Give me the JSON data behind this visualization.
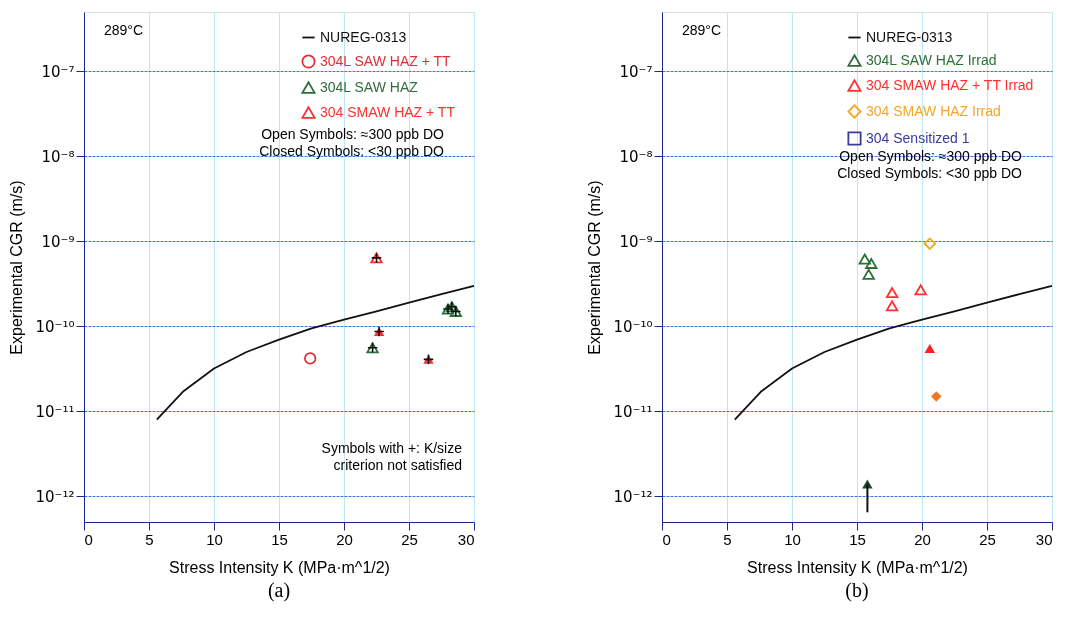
{
  "chart_data": [
    {
      "type": "scatter",
      "title": "(a)",
      "xlabel": "Stress Intensity K (MPa·m^1/2)",
      "ylabel": "Experimental CGR (m/s)",
      "xlim": [
        0,
        30
      ],
      "xticks": [
        0,
        5,
        10,
        15,
        20,
        25,
        30
      ],
      "ylim": [
        5e-13,
        5e-07
      ],
      "log": true,
      "yticks": [
        {
          "value": 1e-12,
          "label": "10⁻¹²"
        },
        {
          "value": 1e-11,
          "label": "10⁻¹¹"
        },
        {
          "value": 1e-10,
          "label": "10⁻¹⁰"
        },
        {
          "value": 1e-09,
          "label": "10⁻⁹"
        },
        {
          "value": 1e-08,
          "label": "10⁻⁸"
        },
        {
          "value": 1e-07,
          "label": "10⁻⁷"
        }
      ],
      "grid": true,
      "legend": "top right",
      "annotations": [
        "289°C",
        "Open  Symbols: ≈300 ppb  DO\nClosed Symbols: <30 ppb DO",
        "Symbols with +: K/size\ncriterion not satisfied"
      ],
      "series": [
        {
          "name": "NUREG-0313",
          "type": "line",
          "line_style": "solid",
          "color": "#111111",
          "x": [
            5.6,
            7.6,
            10,
            12.5,
            15,
            17.5,
            20,
            22.5,
            25,
            27.5,
            30
          ],
          "values": [
            8e-12,
            1.7e-11,
            3.2e-11,
            5e-11,
            7e-11,
            9.5e-11,
            1.2e-10,
            1.5e-10,
            1.9e-10,
            2.4e-10,
            3e-10
          ]
        },
        {
          "name": "304L SAW HAZ + TT",
          "marker": "circle",
          "color": "#e03038",
          "x": [
            17.4
          ],
          "values": [
            4.2e-11
          ]
        },
        {
          "name": "304L SAW HAZ",
          "marker": "triangle",
          "color": "#2e6e3a",
          "x": [
            22.2,
            28.0,
            28.3,
            28.6
          ],
          "values": [
            5.6e-11,
            1.6e-10,
            1.7e-10,
            1.5e-10
          ]
        },
        {
          "name": "304 SMAW HAZ + TT",
          "marker": "triangle",
          "color": "#ff3030",
          "x": [
            22.5
          ],
          "values": [
            6.4e-10
          ]
        },
        {
          "marker": "triangle",
          "color": "#ff3030",
          "x": [
            22.7,
            26.5
          ],
          "values": [
            8.7e-11,
            4.1e-11
          ]
        },
        {
          "marker": "cross",
          "color": "#111111",
          "x": [
            22.5,
            22.7,
            26.5,
            22.2,
            28.0,
            28.3,
            28.6
          ],
          "values": [
            6.4e-10,
            8.7e-11,
            4.1e-11,
            5.6e-11,
            1.6e-10,
            1.7e-10,
            1.5e-10
          ]
        }
      ]
    },
    {
      "type": "scatter",
      "title": "(b)",
      "xlabel": "Stress Intensity K (MPa·m^1/2)",
      "ylabel": "Experimental CGR (m/s)",
      "xlim": [
        0,
        30
      ],
      "xticks": [
        0,
        5,
        10,
        15,
        20,
        25,
        30
      ],
      "ylim": [
        5e-13,
        5e-07
      ],
      "log": true,
      "yticks": [
        {
          "value": 1e-12,
          "label": "10⁻¹²"
        },
        {
          "value": 1e-11,
          "label": "10⁻¹¹"
        },
        {
          "value": 1e-10,
          "label": "10⁻¹⁰"
        },
        {
          "value": 1e-09,
          "label": "10⁻⁹"
        },
        {
          "value": 1e-08,
          "label": "10⁻⁸"
        },
        {
          "value": 1e-07,
          "label": "10⁻⁷"
        }
      ],
      "grid": true,
      "legend": "top right",
      "annotations": [
        "289°C",
        "Open  Symbols: ≈300 ppb  DO\nClosed Symbols: <30 ppb DO"
      ],
      "series": [
        {
          "name": "NUREG-0313",
          "type": "line",
          "line_style": "solid",
          "color": "#111111",
          "x": [
            5.6,
            7.6,
            10,
            12.5,
            15,
            17.5,
            20,
            22.5,
            25,
            27.5,
            30
          ],
          "values": [
            8e-12,
            1.7e-11,
            3.2e-11,
            5e-11,
            7e-11,
            9.5e-11,
            1.2e-10,
            1.5e-10,
            1.9e-10,
            2.4e-10,
            3e-10
          ]
        },
        {
          "name": "304L SAW HAZ Irrad",
          "marker": "triangle",
          "color": "#2e6e3a",
          "x": [
            15.6,
            16.1,
            15.9
          ],
          "values": [
            6.2e-10,
            5.5e-10,
            4.1e-10
          ]
        },
        {
          "name": "304 SMAW HAZ + TT Irrad",
          "marker": "triangle",
          "color": "#ff3030",
          "x": [
            17.7,
            17.7,
            19.9
          ],
          "values": [
            2.5e-10,
            1.75e-10,
            2.7e-10
          ]
        },
        {
          "name": "304 SMAW HAZ Irrad",
          "marker": "diamond",
          "color": "#f5a623",
          "x": [
            20.6
          ],
          "values": [
            9.4e-10
          ]
        },
        {
          "name": "304 Sensitized 1",
          "marker": "square",
          "color": "#3a3aa0"
        },
        {
          "marker": "triangle",
          "color": "#ff2020",
          "x": [
            20.6
          ],
          "values": [
            5.5e-11
          ]
        },
        {
          "marker": "diamond",
          "color": "#f07820",
          "x": [
            21.1
          ],
          "values": [
            1.5e-11
          ]
        },
        {
          "marker": "triangle",
          "color": "#1e4a2a",
          "x": [
            15.8
          ],
          "values": [
            1.4e-12
          ],
          "errors": [
            [
              6.5e-13,
              1.4e-12
            ]
          ]
        }
      ]
    }
  ]
}
